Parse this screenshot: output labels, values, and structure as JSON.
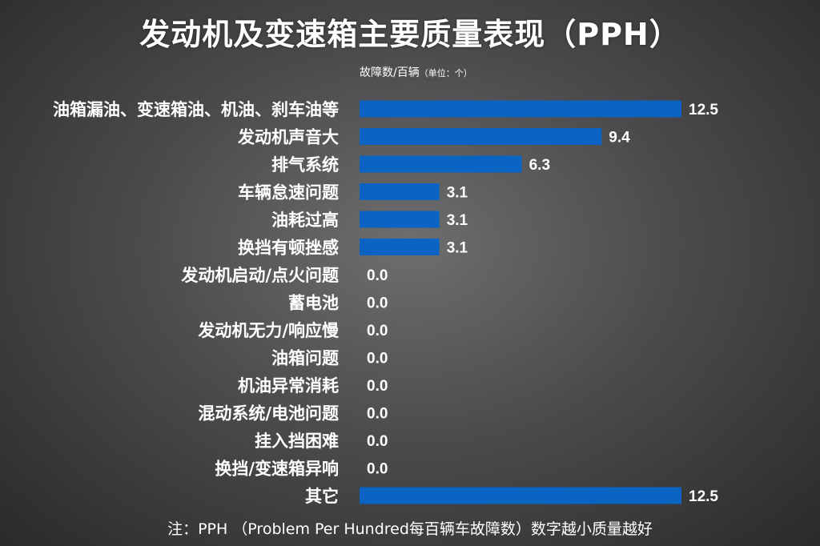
{
  "title": "发动机及变速箱主要质量表现（PPH）",
  "subtitle": {
    "main": "故障数/百辆",
    "unit": "（单位：个）"
  },
  "note": "注：PPH （Problem Per Hundred每百辆车故障数）数字越小质量越好",
  "colors": {
    "bar": "#0b64c4",
    "text": "#ffffff"
  },
  "chart_data": {
    "type": "bar",
    "orientation": "horizontal",
    "title": "发动机及变速箱主要质量表现（PPH）",
    "xlabel": "故障数/百辆（单位：个）",
    "ylabel": "",
    "xlim": [
      0,
      12.5
    ],
    "grid": false,
    "categories": [
      "油箱漏油、变速箱油、机油、刹车油等",
      "发动机声音大",
      "排气系统",
      "车辆怠速问题",
      "油耗过高",
      "换挡有顿挫感",
      "发动机启动/点火问题",
      "蓄电池",
      "发动机无力/响应慢",
      "油箱问题",
      "机油异常消耗",
      "混动系统/电池问题",
      "挂入挡困难",
      "换挡/变速箱异响",
      "其它"
    ],
    "values": [
      12.5,
      9.4,
      6.3,
      3.1,
      3.1,
      3.1,
      0.0,
      0.0,
      0.0,
      0.0,
      0.0,
      0.0,
      0.0,
      0.0,
      12.5
    ],
    "value_labels": [
      "12.5",
      "9.4",
      "6.3",
      "3.1",
      "3.1",
      "3.1",
      "0.0",
      "0.0",
      "0.0",
      "0.0",
      "0.0",
      "0.0",
      "0.0",
      "0.0",
      "12.5"
    ]
  }
}
